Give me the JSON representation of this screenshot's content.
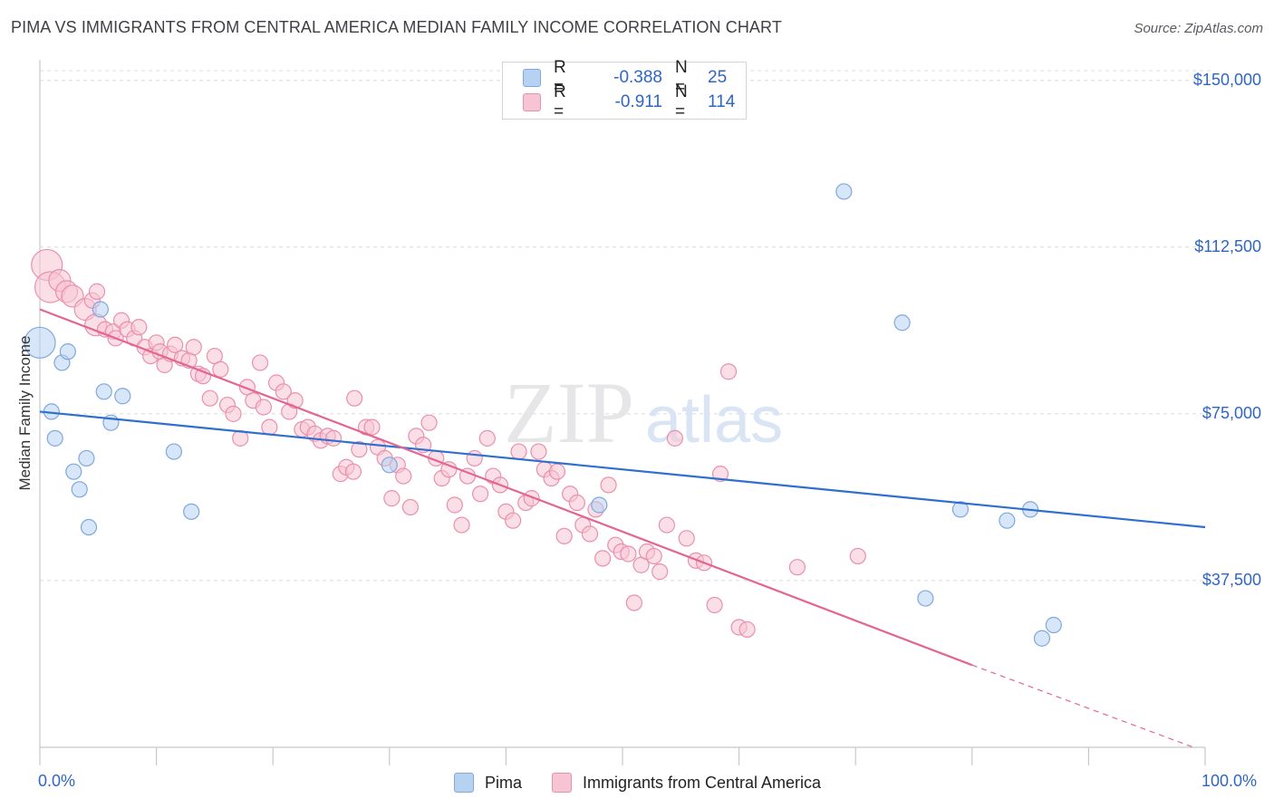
{
  "title": "PIMA VS IMMIGRANTS FROM CENTRAL AMERICA MEDIAN FAMILY INCOME CORRELATION CHART",
  "source": "Source: ZipAtlas.com",
  "watermark": {
    "zip": "ZIP",
    "atlas": "atlas"
  },
  "legend": {
    "r_label": "R =",
    "n_label": "N =",
    "rows": [
      {
        "name": "Pima",
        "r": "-0.388",
        "n": "25"
      },
      {
        "name": "Immigrants from Central America",
        "r": "-0.911",
        "n": "114"
      }
    ]
  },
  "colors": {
    "pima_fill": "#b7d1f2",
    "pima_stroke": "#7fa8de",
    "pima_line": "#2f6fce",
    "cam_fill": "#f7c4d3",
    "cam_stroke": "#ea8fad",
    "cam_line": "#e36592",
    "tick_text": "#2f66c6",
    "grid": "#dcdce0"
  },
  "chart_data": {
    "type": "scatter",
    "title": "PIMA VS IMMIGRANTS FROM CENTRAL AMERICA MEDIAN FAMILY INCOME CORRELATION CHART",
    "xlabel": "",
    "ylabel": "Median Family Income",
    "x_tick_labels": [
      "0.0%",
      "100.0%"
    ],
    "y_tick_labels": [
      "$37,500",
      "$75,000",
      "$112,500",
      "$150,000"
    ],
    "y_ticks": [
      37500,
      75000,
      112500,
      150000
    ],
    "xlim": [
      0,
      100
    ],
    "ylim": [
      0,
      153000
    ],
    "grid": true,
    "legend_position": "top-center",
    "series": [
      {
        "name": "Pima",
        "r": -0.388,
        "n": 25,
        "trend": {
          "x0": 0,
          "y0": 75500,
          "x1": 100,
          "y1": 49500
        },
        "points": [
          {
            "x": 0.0,
            "y": 91000,
            "s": 3
          },
          {
            "x": 1.0,
            "y": 75500,
            "s": 1
          },
          {
            "x": 1.3,
            "y": 69500,
            "s": 1
          },
          {
            "x": 1.9,
            "y": 86500,
            "s": 1
          },
          {
            "x": 2.4,
            "y": 89000,
            "s": 1
          },
          {
            "x": 2.9,
            "y": 62000,
            "s": 1
          },
          {
            "x": 3.4,
            "y": 58000,
            "s": 1
          },
          {
            "x": 4.0,
            "y": 65000,
            "s": 1
          },
          {
            "x": 4.2,
            "y": 49500,
            "s": 1
          },
          {
            "x": 5.2,
            "y": 98500,
            "s": 1
          },
          {
            "x": 5.5,
            "y": 80000,
            "s": 1
          },
          {
            "x": 6.1,
            "y": 73000,
            "s": 1
          },
          {
            "x": 7.1,
            "y": 79000,
            "s": 1
          },
          {
            "x": 11.5,
            "y": 66500,
            "s": 1
          },
          {
            "x": 13.0,
            "y": 53000,
            "s": 1
          },
          {
            "x": 30.0,
            "y": 63500,
            "s": 1
          },
          {
            "x": 48.0,
            "y": 54500,
            "s": 1
          },
          {
            "x": 69.0,
            "y": 125000,
            "s": 1
          },
          {
            "x": 74.0,
            "y": 95500,
            "s": 1
          },
          {
            "x": 76.0,
            "y": 33500,
            "s": 1
          },
          {
            "x": 79.0,
            "y": 53500,
            "s": 1
          },
          {
            "x": 83.0,
            "y": 51000,
            "s": 1
          },
          {
            "x": 85.0,
            "y": 53500,
            "s": 1
          },
          {
            "x": 86.0,
            "y": 24500,
            "s": 1
          },
          {
            "x": 87.0,
            "y": 27500,
            "s": 1
          }
        ]
      },
      {
        "name": "Immigrants from Central America",
        "r": -0.911,
        "n": 114,
        "trend": {
          "x0": 0,
          "y0": 98500,
          "x1": 80,
          "y1": 18500,
          "dash_to_x": 99,
          "dash_to_y": 0
        },
        "points": [
          {
            "x": 0.6,
            "y": 108500,
            "s": 3
          },
          {
            "x": 0.9,
            "y": 103500,
            "s": 3
          },
          {
            "x": 1.7,
            "y": 105000,
            "s": 2
          },
          {
            "x": 2.3,
            "y": 102500,
            "s": 2
          },
          {
            "x": 2.8,
            "y": 101500,
            "s": 2
          },
          {
            "x": 3.9,
            "y": 98500,
            "s": 2
          },
          {
            "x": 4.5,
            "y": 100500,
            "s": 1
          },
          {
            "x": 4.8,
            "y": 95000,
            "s": 2
          },
          {
            "x": 4.9,
            "y": 102500,
            "s": 1
          },
          {
            "x": 5.6,
            "y": 94000,
            "s": 1
          },
          {
            "x": 6.3,
            "y": 93500,
            "s": 1
          },
          {
            "x": 6.5,
            "y": 92000,
            "s": 1
          },
          {
            "x": 7.0,
            "y": 96000,
            "s": 1
          },
          {
            "x": 7.5,
            "y": 94000,
            "s": 1
          },
          {
            "x": 8.1,
            "y": 92000,
            "s": 1
          },
          {
            "x": 8.5,
            "y": 94500,
            "s": 1
          },
          {
            "x": 9.0,
            "y": 90000,
            "s": 1
          },
          {
            "x": 9.5,
            "y": 88000,
            "s": 1
          },
          {
            "x": 10.0,
            "y": 91000,
            "s": 1
          },
          {
            "x": 10.3,
            "y": 89000,
            "s": 1
          },
          {
            "x": 10.7,
            "y": 86000,
            "s": 1
          },
          {
            "x": 11.2,
            "y": 88500,
            "s": 1
          },
          {
            "x": 11.6,
            "y": 90500,
            "s": 1
          },
          {
            "x": 12.2,
            "y": 87500,
            "s": 1
          },
          {
            "x": 12.8,
            "y": 87000,
            "s": 1
          },
          {
            "x": 13.2,
            "y": 90000,
            "s": 1
          },
          {
            "x": 13.6,
            "y": 84000,
            "s": 1
          },
          {
            "x": 14.0,
            "y": 83500,
            "s": 1
          },
          {
            "x": 14.6,
            "y": 78500,
            "s": 1
          },
          {
            "x": 15.0,
            "y": 88000,
            "s": 1
          },
          {
            "x": 15.5,
            "y": 85000,
            "s": 1
          },
          {
            "x": 16.1,
            "y": 77000,
            "s": 1
          },
          {
            "x": 16.6,
            "y": 75000,
            "s": 1
          },
          {
            "x": 17.2,
            "y": 69500,
            "s": 1
          },
          {
            "x": 17.8,
            "y": 81000,
            "s": 1
          },
          {
            "x": 18.3,
            "y": 78000,
            "s": 1
          },
          {
            "x": 18.9,
            "y": 86500,
            "s": 1
          },
          {
            "x": 19.2,
            "y": 76500,
            "s": 1
          },
          {
            "x": 19.7,
            "y": 72000,
            "s": 1
          },
          {
            "x": 20.3,
            "y": 82000,
            "s": 1
          },
          {
            "x": 20.9,
            "y": 80000,
            "s": 1
          },
          {
            "x": 21.4,
            "y": 75500,
            "s": 1
          },
          {
            "x": 21.9,
            "y": 78000,
            "s": 1
          },
          {
            "x": 22.5,
            "y": 71500,
            "s": 1
          },
          {
            "x": 23.0,
            "y": 72000,
            "s": 1
          },
          {
            "x": 23.6,
            "y": 70500,
            "s": 1
          },
          {
            "x": 24.1,
            "y": 69000,
            "s": 1
          },
          {
            "x": 24.7,
            "y": 70000,
            "s": 1
          },
          {
            "x": 25.2,
            "y": 69500,
            "s": 1
          },
          {
            "x": 25.8,
            "y": 61500,
            "s": 1
          },
          {
            "x": 26.3,
            "y": 63000,
            "s": 1
          },
          {
            "x": 26.9,
            "y": 62000,
            "s": 1
          },
          {
            "x": 27.0,
            "y": 78500,
            "s": 1
          },
          {
            "x": 27.4,
            "y": 67000,
            "s": 1
          },
          {
            "x": 28.0,
            "y": 72000,
            "s": 1
          },
          {
            "x": 28.5,
            "y": 72000,
            "s": 1
          },
          {
            "x": 29.0,
            "y": 67500,
            "s": 1
          },
          {
            "x": 29.6,
            "y": 65000,
            "s": 1
          },
          {
            "x": 30.2,
            "y": 56000,
            "s": 1
          },
          {
            "x": 30.7,
            "y": 63500,
            "s": 1
          },
          {
            "x": 31.2,
            "y": 61000,
            "s": 1
          },
          {
            "x": 31.8,
            "y": 54000,
            "s": 1
          },
          {
            "x": 32.3,
            "y": 70000,
            "s": 1
          },
          {
            "x": 32.9,
            "y": 68000,
            "s": 1
          },
          {
            "x": 33.4,
            "y": 73000,
            "s": 1
          },
          {
            "x": 34.0,
            "y": 65000,
            "s": 1
          },
          {
            "x": 34.5,
            "y": 60500,
            "s": 1
          },
          {
            "x": 35.1,
            "y": 62500,
            "s": 1
          },
          {
            "x": 35.6,
            "y": 54500,
            "s": 1
          },
          {
            "x": 36.2,
            "y": 50000,
            "s": 1
          },
          {
            "x": 36.7,
            "y": 61000,
            "s": 1
          },
          {
            "x": 37.3,
            "y": 65000,
            "s": 1
          },
          {
            "x": 37.8,
            "y": 57000,
            "s": 1
          },
          {
            "x": 38.4,
            "y": 69500,
            "s": 1
          },
          {
            "x": 38.9,
            "y": 61000,
            "s": 1
          },
          {
            "x": 39.5,
            "y": 59000,
            "s": 1
          },
          {
            "x": 40.0,
            "y": 53000,
            "s": 1
          },
          {
            "x": 40.6,
            "y": 51000,
            "s": 1
          },
          {
            "x": 41.1,
            "y": 66500,
            "s": 1
          },
          {
            "x": 41.7,
            "y": 55000,
            "s": 1
          },
          {
            "x": 42.2,
            "y": 56000,
            "s": 1
          },
          {
            "x": 42.8,
            "y": 66500,
            "s": 1
          },
          {
            "x": 43.3,
            "y": 62500,
            "s": 1
          },
          {
            "x": 43.9,
            "y": 60500,
            "s": 1
          },
          {
            "x": 44.4,
            "y": 62000,
            "s": 1
          },
          {
            "x": 45.0,
            "y": 47500,
            "s": 1
          },
          {
            "x": 45.5,
            "y": 57000,
            "s": 1
          },
          {
            "x": 46.1,
            "y": 55000,
            "s": 1
          },
          {
            "x": 46.6,
            "y": 50000,
            "s": 1
          },
          {
            "x": 47.2,
            "y": 48000,
            "s": 1
          },
          {
            "x": 47.7,
            "y": 53500,
            "s": 1
          },
          {
            "x": 48.3,
            "y": 42500,
            "s": 1
          },
          {
            "x": 48.8,
            "y": 59000,
            "s": 1
          },
          {
            "x": 49.4,
            "y": 45500,
            "s": 1
          },
          {
            "x": 49.9,
            "y": 44000,
            "s": 1
          },
          {
            "x": 50.5,
            "y": 43500,
            "s": 1
          },
          {
            "x": 51.0,
            "y": 32500,
            "s": 1
          },
          {
            "x": 51.6,
            "y": 41000,
            "s": 1
          },
          {
            "x": 52.1,
            "y": 44000,
            "s": 1
          },
          {
            "x": 52.7,
            "y": 43000,
            "s": 1
          },
          {
            "x": 53.2,
            "y": 39500,
            "s": 1
          },
          {
            "x": 53.8,
            "y": 50000,
            "s": 1
          },
          {
            "x": 54.5,
            "y": 69500,
            "s": 1
          },
          {
            "x": 55.5,
            "y": 47000,
            "s": 1
          },
          {
            "x": 56.3,
            "y": 42000,
            "s": 1
          },
          {
            "x": 57.0,
            "y": 41500,
            "s": 1
          },
          {
            "x": 57.9,
            "y": 32000,
            "s": 1
          },
          {
            "x": 58.4,
            "y": 61500,
            "s": 1
          },
          {
            "x": 59.1,
            "y": 84500,
            "s": 1
          },
          {
            "x": 60.0,
            "y": 27000,
            "s": 1
          },
          {
            "x": 60.7,
            "y": 26500,
            "s": 1
          },
          {
            "x": 65.0,
            "y": 40500,
            "s": 1
          },
          {
            "x": 70.2,
            "y": 43000,
            "s": 1
          }
        ]
      }
    ]
  }
}
